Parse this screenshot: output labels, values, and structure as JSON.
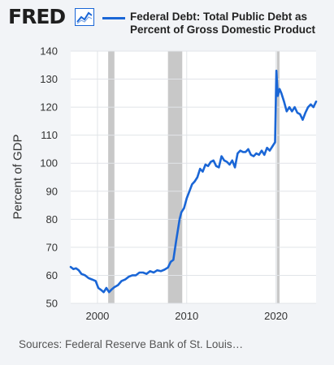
{
  "header": {
    "logo_text": "FRED",
    "logo_icon": "line-chart-icon",
    "legend_label_line1": "Federal Debt: Total Public Debt as",
    "legend_label_line2": "Percent of Gross Domestic Product"
  },
  "footer": {
    "source": "Sources: Federal Reserve Bank of St. Louis…"
  },
  "colors": {
    "series": "#1a66d6",
    "recession": "#c8c8c8",
    "background": "#f2f4f7",
    "plot_background": "#ffffff",
    "grid": "#e1e4e8"
  },
  "chart_data": {
    "type": "line",
    "title": "",
    "xlabel": "",
    "ylabel": "Percent of GDP",
    "xlim": [
      1997.0,
      2024.5
    ],
    "ylim": [
      50,
      140
    ],
    "y_ticks": [
      50,
      60,
      70,
      80,
      90,
      100,
      110,
      120,
      130,
      140
    ],
    "x_ticks": [
      2000,
      2010,
      2020
    ],
    "grid": true,
    "legend": "top",
    "recessions": [
      [
        2001.2,
        2001.9
      ],
      [
        2007.9,
        2009.5
      ],
      [
        2020.1,
        2020.4
      ]
    ],
    "series": [
      {
        "name": "Federal Debt: Total Public Debt as Percent of Gross Domestic Product",
        "x": [
          1997.0,
          1997.3,
          1997.6,
          1997.9,
          1998.2,
          1998.6,
          1999.0,
          1999.4,
          1999.8,
          2000.1,
          2000.4,
          2000.7,
          2001.0,
          2001.3,
          2001.6,
          2001.9,
          2002.3,
          2002.7,
          2003.1,
          2003.5,
          2003.9,
          2004.3,
          2004.7,
          2005.1,
          2005.5,
          2005.9,
          2006.3,
          2006.7,
          2007.1,
          2007.5,
          2007.9,
          2008.2,
          2008.5,
          2008.8,
          2009.0,
          2009.2,
          2009.4,
          2009.7,
          2010.0,
          2010.3,
          2010.6,
          2010.9,
          2011.2,
          2011.5,
          2011.8,
          2012.1,
          2012.4,
          2012.7,
          2013.0,
          2013.3,
          2013.6,
          2013.9,
          2014.2,
          2014.5,
          2014.8,
          2015.1,
          2015.4,
          2015.7,
          2016.0,
          2016.3,
          2016.6,
          2016.9,
          2017.2,
          2017.5,
          2017.8,
          2018.1,
          2018.4,
          2018.7,
          2019.0,
          2019.3,
          2019.6,
          2019.9,
          2020.05,
          2020.2,
          2020.4,
          2020.6,
          2020.9,
          2021.2,
          2021.5,
          2021.8,
          2022.1,
          2022.4,
          2022.7,
          2023.0,
          2023.3,
          2023.6,
          2023.9,
          2024.2,
          2024.5
        ],
        "values": [
          63,
          62.2,
          62.5,
          61.8,
          60.5,
          60.0,
          59.0,
          58.5,
          58.0,
          55.5,
          54.8,
          54.0,
          55.5,
          54.0,
          55.0,
          55.8,
          56.5,
          58.0,
          58.5,
          59.5,
          60.0,
          60.0,
          61.0,
          61.0,
          60.5,
          61.5,
          61.0,
          61.8,
          61.5,
          62.0,
          62.8,
          64.8,
          65.5,
          72.0,
          76.0,
          80.0,
          82.5,
          84.0,
          87.5,
          90.0,
          92.5,
          93.5,
          95.0,
          98.0,
          97.0,
          99.5,
          99.0,
          100.5,
          101.0,
          99.0,
          98.5,
          102.5,
          101.0,
          100.5,
          99.5,
          101.0,
          98.5,
          103.5,
          104.5,
          104.0,
          104.0,
          105.0,
          103.0,
          102.5,
          103.5,
          103.0,
          104.5,
          103.0,
          105.5,
          104.5,
          106.0,
          107.5,
          133.0,
          124.0,
          126.5,
          125.0,
          122.0,
          118.5,
          120.0,
          118.5,
          120.0,
          118.0,
          117.5,
          115.5,
          118.0,
          120.0,
          121.0,
          120.0,
          122.0
        ]
      }
    ]
  }
}
